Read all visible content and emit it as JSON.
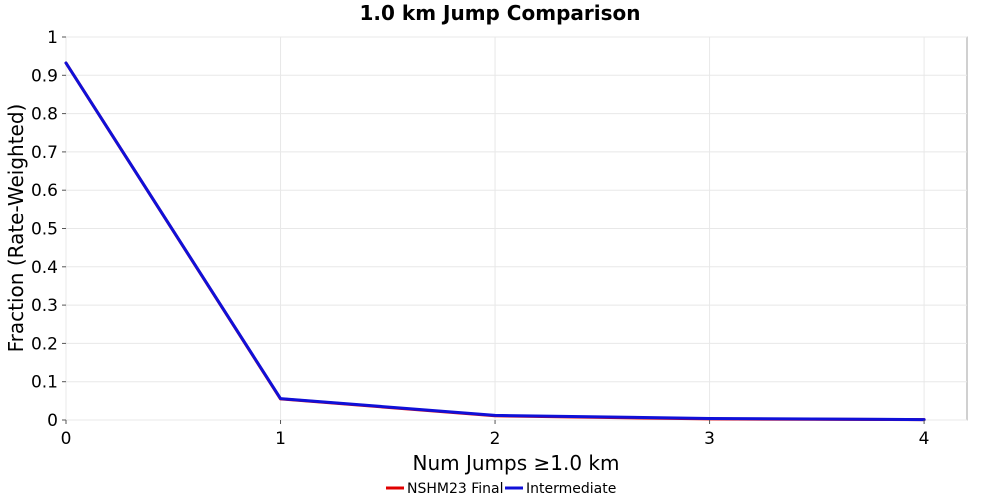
{
  "chart_data": {
    "type": "line",
    "title": "1.0 km Jump Comparison",
    "xlabel": "Num Jumps ≥1.0 km",
    "ylabel": "Fraction (Rate-Weighted)",
    "xlim": [
      0,
      4.2
    ],
    "ylim": [
      0,
      1
    ],
    "x_ticks": [
      "0",
      "1",
      "2",
      "3",
      "4"
    ],
    "y_ticks": [
      "0",
      "0.1",
      "0.2",
      "0.3",
      "0.4",
      "0.5",
      "0.6",
      "0.7",
      "0.8",
      "0.9",
      "1"
    ],
    "grid": true,
    "legend_position": "bottom-center",
    "series": [
      {
        "name": "NSHM23 Final",
        "color": "#e00000",
        "x": [
          0,
          1,
          2,
          3,
          4
        ],
        "y": [
          0.932,
          0.055,
          0.011,
          0.003,
          0.001
        ]
      },
      {
        "name": "Intermediate",
        "color": "#1010d8",
        "x": [
          0,
          1,
          2,
          3,
          4
        ],
        "y": [
          0.932,
          0.056,
          0.012,
          0.004,
          0.001
        ]
      }
    ]
  }
}
